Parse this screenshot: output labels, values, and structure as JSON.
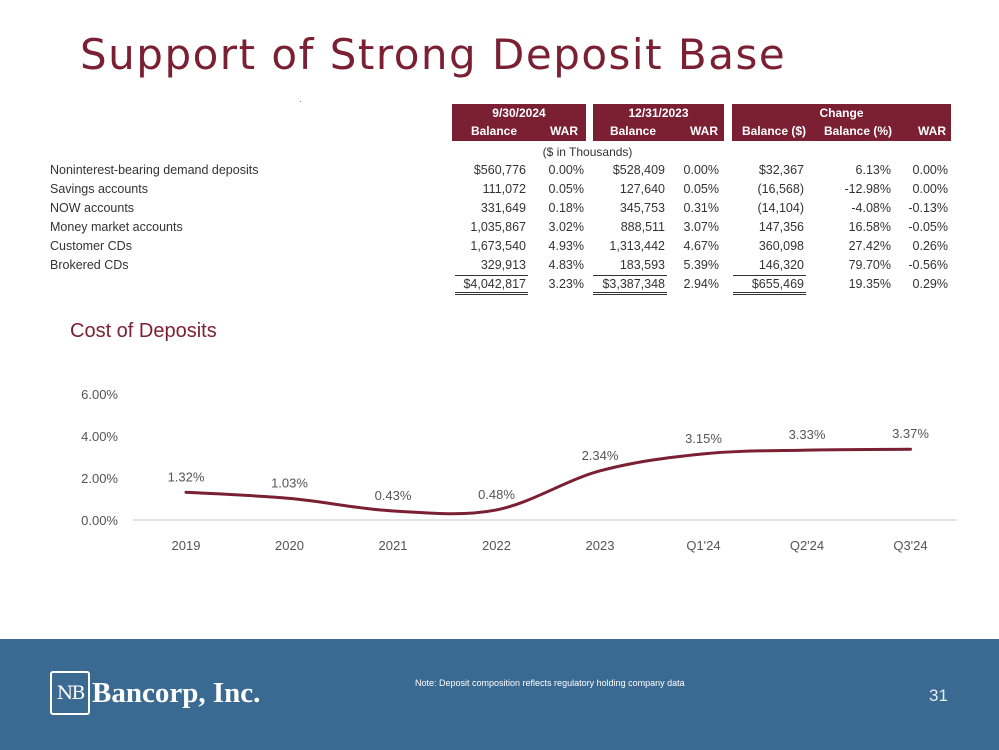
{
  "slide": {
    "title": "Support of Strong Deposit Base",
    "page_number": "31"
  },
  "table": {
    "groups": [
      "9/30/2024",
      "12/31/2023",
      "Change"
    ],
    "sub_headers": [
      "Balance",
      "WAR",
      "Balance",
      "WAR",
      "Balance ($)",
      "Balance (%)",
      "WAR"
    ],
    "units": "($ in Thousands)",
    "rows": [
      {
        "label": "Noninterest-bearing demand deposits",
        "cells": [
          "$560,776",
          "0.00%",
          "$528,409",
          "0.00%",
          "$32,367",
          "6.13%",
          "0.00%"
        ]
      },
      {
        "label": "Savings accounts",
        "cells": [
          "111,072",
          "0.05%",
          "127,640",
          "0.05%",
          "(16,568)",
          "-12.98%",
          "0.00%"
        ]
      },
      {
        "label": "NOW accounts",
        "cells": [
          "331,649",
          "0.18%",
          "345,753",
          "0.31%",
          "(14,104)",
          "-4.08%",
          "-0.13%"
        ]
      },
      {
        "label": "Money market accounts",
        "cells": [
          "1,035,867",
          "3.02%",
          "888,511",
          "3.07%",
          "147,356",
          "16.58%",
          "-0.05%"
        ]
      },
      {
        "label": "Customer CDs",
        "cells": [
          "1,673,540",
          "4.93%",
          "1,313,442",
          "4.67%",
          "360,098",
          "27.42%",
          "0.26%"
        ]
      },
      {
        "label": "Brokered CDs",
        "cells": [
          "329,913",
          "4.83%",
          "183,593",
          "5.39%",
          "146,320",
          "79.70%",
          "-0.56%"
        ]
      }
    ],
    "total": {
      "label": "",
      "cells": [
        "$4,042,817",
        "3.23%",
        "$3,387,348",
        "2.94%",
        "$655,469",
        "19.35%",
        "0.29%"
      ]
    }
  },
  "chart_title": "Cost of Deposits",
  "chart_data": {
    "type": "line",
    "title": "Cost of Deposits",
    "categories": [
      "2019",
      "2020",
      "2021",
      "2022",
      "2023",
      "Q1'24",
      "Q2'24",
      "Q3'24"
    ],
    "series": [
      {
        "name": "Cost of Deposits",
        "values": [
          1.32,
          1.03,
          0.43,
          0.48,
          2.34,
          3.15,
          3.33,
          3.37
        ]
      }
    ],
    "data_labels": [
      "1.32%",
      "1.03%",
      "0.43%",
      "0.48%",
      "2.34%",
      "3.15%",
      "3.33%",
      "3.37%"
    ],
    "y_ticks": [
      "0.00%",
      "2.00%",
      "4.00%",
      "6.00%"
    ],
    "ylim": [
      0,
      6
    ],
    "line_color": "#7b1f33",
    "grid": false
  },
  "footer": {
    "logo_mark": "NB",
    "logo_text": "Bancorp, Inc.",
    "note": "Note: Deposit composition reflects regulatory holding company data"
  },
  "colors": {
    "brand": "#7b1f33",
    "footer": "#3a6a91"
  }
}
